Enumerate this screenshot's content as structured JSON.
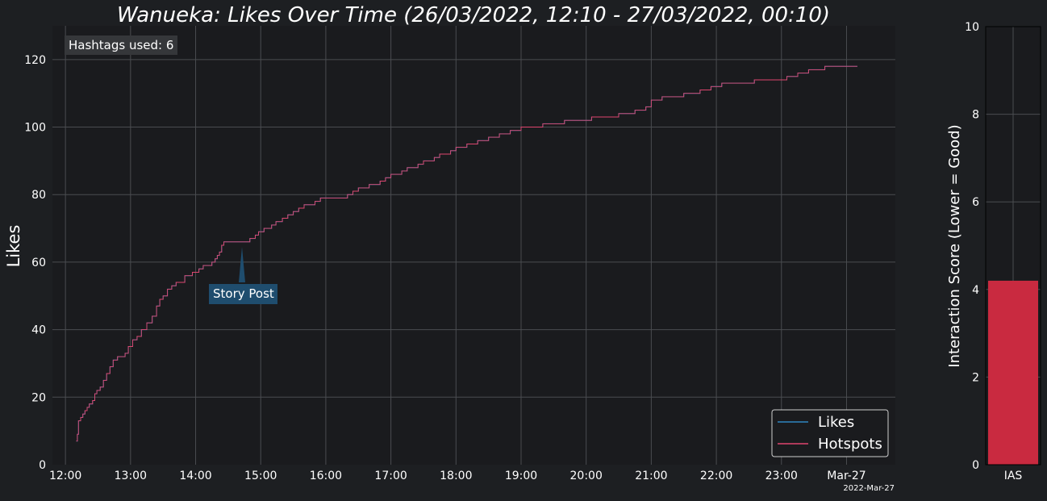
{
  "title": "Wanueka: Likes Over Time (26/03/2022, 12:10 - 27/03/2022, 00:10)",
  "colors": {
    "background": "#1d1f22",
    "axes_bg": "#1a1b1e",
    "grid": "#4a4c50",
    "likes": "#2e86c1",
    "hotspots": "#e0456e",
    "ias_bar": "#c92a40",
    "annotation_bg": "#1f4d6e",
    "badge_bg": "#35373a"
  },
  "chart_data": [
    {
      "type": "line",
      "title": "Wanueka: Likes Over Time (26/03/2022, 12:10 - 27/03/2022, 00:10)",
      "xlabel": "",
      "ylabel": "Likes",
      "x_ticks": [
        "12:00",
        "13:00",
        "14:00",
        "15:00",
        "16:00",
        "17:00",
        "18:00",
        "19:00",
        "20:00",
        "21:00",
        "22:00",
        "23:00",
        "Mar-27"
      ],
      "x_offset_label": "2022-Mar-27",
      "xlim": [
        "2022-03-26 11:48",
        "2022-03-27 00:45"
      ],
      "ylim": [
        0,
        130
      ],
      "y_ticks": [
        0,
        20,
        40,
        60,
        80,
        100,
        120
      ],
      "grid": true,
      "legend_position": "bottom-right",
      "hashtags_label": "Hashtags used: 6",
      "annotations": [
        {
          "text": "Story Post",
          "time": "2022-03-26 14:33",
          "value": 65
        }
      ],
      "series": [
        {
          "name": "Likes",
          "points": [
            [
              "12:10",
              7
            ],
            [
              "12:11",
              9
            ],
            [
              "12:12",
              13
            ],
            [
              "12:14",
              14
            ],
            [
              "12:16",
              15
            ],
            [
              "12:18",
              16
            ],
            [
              "12:20",
              17
            ],
            [
              "12:22",
              18
            ],
            [
              "12:25",
              19
            ],
            [
              "12:27",
              21
            ],
            [
              "12:29",
              22
            ],
            [
              "12:32",
              23
            ],
            [
              "12:35",
              25
            ],
            [
              "12:38",
              27
            ],
            [
              "12:41",
              29
            ],
            [
              "12:44",
              31
            ],
            [
              "12:48",
              32
            ],
            [
              "12:55",
              33
            ],
            [
              "12:58",
              35
            ],
            [
              "13:02",
              37
            ],
            [
              "13:06",
              38
            ],
            [
              "13:10",
              40
            ],
            [
              "13:15",
              42
            ],
            [
              "13:20",
              44
            ],
            [
              "13:24",
              47
            ],
            [
              "13:27",
              49
            ],
            [
              "13:30",
              50
            ],
            [
              "13:34",
              52
            ],
            [
              "13:38",
              53
            ],
            [
              "13:42",
              54
            ],
            [
              "13:50",
              56
            ],
            [
              "13:57",
              57
            ],
            [
              "14:03",
              58
            ],
            [
              "14:07",
              59
            ],
            [
              "14:15",
              60
            ],
            [
              "14:18",
              61
            ],
            [
              "14:20",
              62
            ],
            [
              "14:22",
              63
            ],
            [
              "14:24",
              65
            ],
            [
              "14:26",
              66
            ],
            [
              "14:45",
              66
            ],
            [
              "14:50",
              67
            ],
            [
              "14:55",
              68
            ],
            [
              "14:58",
              69
            ],
            [
              "15:03",
              70
            ],
            [
              "15:10",
              71
            ],
            [
              "15:14",
              72
            ],
            [
              "15:20",
              73
            ],
            [
              "15:25",
              74
            ],
            [
              "15:30",
              75
            ],
            [
              "15:35",
              76
            ],
            [
              "15:40",
              77
            ],
            [
              "15:50",
              78
            ],
            [
              "15:55",
              79
            ],
            [
              "16:20",
              80
            ],
            [
              "16:25",
              81
            ],
            [
              "16:30",
              82
            ],
            [
              "16:40",
              83
            ],
            [
              "16:50",
              84
            ],
            [
              "16:55",
              85
            ],
            [
              "17:00",
              86
            ],
            [
              "17:10",
              87
            ],
            [
              "17:15",
              88
            ],
            [
              "17:25",
              89
            ],
            [
              "17:30",
              90
            ],
            [
              "17:40",
              91
            ],
            [
              "17:45",
              92
            ],
            [
              "17:55",
              93
            ],
            [
              "18:00",
              94
            ],
            [
              "18:10",
              95
            ],
            [
              "18:20",
              96
            ],
            [
              "18:30",
              97
            ],
            [
              "18:40",
              98
            ],
            [
              "18:50",
              99
            ],
            [
              "19:00",
              100
            ],
            [
              "19:20",
              101
            ],
            [
              "19:40",
              102
            ],
            [
              "20:05",
              103
            ],
            [
              "20:30",
              104
            ],
            [
              "20:45",
              105
            ],
            [
              "20:55",
              106
            ],
            [
              "21:00",
              108
            ],
            [
              "21:10",
              109
            ],
            [
              "21:30",
              110
            ],
            [
              "21:45",
              111
            ],
            [
              "21:55",
              112
            ],
            [
              "22:05",
              113
            ],
            [
              "22:35",
              114
            ],
            [
              "23:05",
              115
            ],
            [
              "23:15",
              116
            ],
            [
              "23:25",
              117
            ],
            [
              "23:40",
              118
            ],
            [
              "24:10",
              118
            ]
          ]
        },
        {
          "name": "Hotspots",
          "points": [
            [
              "12:10",
              7
            ],
            [
              "12:11",
              9
            ],
            [
              "12:12",
              13
            ],
            [
              "12:14",
              14
            ],
            [
              "12:16",
              15
            ],
            [
              "12:18",
              16
            ],
            [
              "12:20",
              17
            ],
            [
              "12:22",
              18
            ],
            [
              "12:25",
              19
            ],
            [
              "12:27",
              21
            ],
            [
              "12:29",
              22
            ],
            [
              "12:32",
              23
            ],
            [
              "12:35",
              25
            ],
            [
              "12:38",
              27
            ],
            [
              "12:41",
              29
            ],
            [
              "12:44",
              31
            ],
            [
              "12:48",
              32
            ],
            [
              "12:55",
              33
            ],
            [
              "12:58",
              35
            ],
            [
              "13:02",
              37
            ],
            [
              "13:06",
              38
            ],
            [
              "13:10",
              40
            ],
            [
              "13:15",
              42
            ],
            [
              "13:20",
              44
            ],
            [
              "13:24",
              47
            ],
            [
              "13:27",
              49
            ],
            [
              "13:30",
              50
            ],
            [
              "13:34",
              52
            ],
            [
              "13:38",
              53
            ],
            [
              "13:42",
              54
            ],
            [
              "13:50",
              56
            ],
            [
              "13:57",
              57
            ],
            [
              "14:03",
              58
            ],
            [
              "14:07",
              59
            ],
            [
              "14:15",
              60
            ],
            [
              "14:18",
              61
            ],
            [
              "14:20",
              62
            ],
            [
              "14:22",
              63
            ],
            [
              "14:24",
              65
            ],
            [
              "14:26",
              66
            ],
            [
              "14:45",
              66
            ],
            [
              "14:50",
              67
            ],
            [
              "14:55",
              68
            ],
            [
              "14:58",
              69
            ],
            [
              "15:03",
              70
            ],
            [
              "15:10",
              71
            ],
            [
              "15:14",
              72
            ],
            [
              "15:20",
              73
            ],
            [
              "15:25",
              74
            ],
            [
              "15:30",
              75
            ],
            [
              "15:35",
              76
            ],
            [
              "15:40",
              77
            ],
            [
              "15:50",
              78
            ],
            [
              "15:55",
              79
            ],
            [
              "16:20",
              80
            ],
            [
              "16:25",
              81
            ],
            [
              "16:30",
              82
            ],
            [
              "16:40",
              83
            ],
            [
              "16:50",
              84
            ],
            [
              "16:55",
              85
            ],
            [
              "17:00",
              86
            ],
            [
              "17:10",
              87
            ],
            [
              "17:15",
              88
            ],
            [
              "17:25",
              89
            ],
            [
              "17:30",
              90
            ],
            [
              "17:40",
              91
            ],
            [
              "17:45",
              92
            ],
            [
              "17:55",
              93
            ],
            [
              "18:00",
              94
            ],
            [
              "18:10",
              95
            ],
            [
              "18:20",
              96
            ],
            [
              "18:30",
              97
            ],
            [
              "18:40",
              98
            ],
            [
              "18:50",
              99
            ],
            [
              "19:00",
              100
            ],
            [
              "19:20",
              101
            ],
            [
              "19:40",
              102
            ],
            [
              "20:05",
              103
            ],
            [
              "20:30",
              104
            ],
            [
              "20:45",
              105
            ],
            [
              "20:55",
              106
            ],
            [
              "21:00",
              108
            ],
            [
              "21:10",
              109
            ],
            [
              "21:30",
              110
            ],
            [
              "21:45",
              111
            ],
            [
              "21:55",
              112
            ],
            [
              "22:05",
              113
            ],
            [
              "22:35",
              114
            ],
            [
              "23:05",
              115
            ],
            [
              "23:15",
              116
            ],
            [
              "23:25",
              117
            ],
            [
              "23:40",
              118
            ],
            [
              "24:10",
              118
            ]
          ]
        }
      ]
    },
    {
      "type": "bar",
      "title": "",
      "xlabel": "",
      "ylabel": "Interaction Score (Lower = Good)",
      "categories": [
        "IAS"
      ],
      "values": [
        4.2
      ],
      "ylim": [
        0,
        10
      ],
      "y_ticks": [
        0,
        2,
        4,
        6,
        8,
        10
      ],
      "grid": true
    }
  ]
}
